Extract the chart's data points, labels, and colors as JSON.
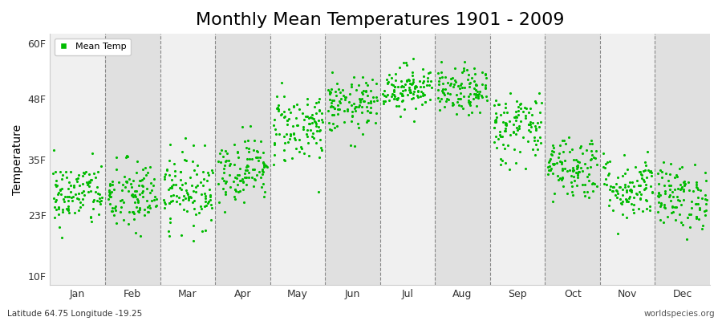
{
  "title": "Monthly Mean Temperatures 1901 - 2009",
  "ylabel": "Temperature",
  "yticks": [
    10,
    23,
    35,
    48,
    60
  ],
  "ytick_labels": [
    "10F",
    "23F",
    "35F",
    "48F",
    "60F"
  ],
  "ylim": [
    8,
    62
  ],
  "months": [
    "Jan",
    "Feb",
    "Mar",
    "Apr",
    "May",
    "Jun",
    "Jul",
    "Aug",
    "Sep",
    "Oct",
    "Nov",
    "Dec"
  ],
  "dot_color": "#00bb00",
  "bg_colors": [
    "#f0f0f0",
    "#e0e0e0"
  ],
  "fig_bg_color": "#ffffff",
  "footer_left": "Latitude 64.75 Longitude -19.25",
  "footer_right": "worldspecies.org",
  "legend_label": "Mean Temp",
  "title_fontsize": 16,
  "n_years": 109,
  "mean_temps_by_month": [
    27.5,
    27.0,
    28.5,
    33.0,
    42.0,
    46.5,
    50.5,
    49.5,
    42.0,
    33.5,
    29.0,
    27.0
  ],
  "std_temps_by_month": [
    3.5,
    4.0,
    4.0,
    3.5,
    4.0,
    3.0,
    2.5,
    2.5,
    4.0,
    3.5,
    3.5,
    3.5
  ]
}
